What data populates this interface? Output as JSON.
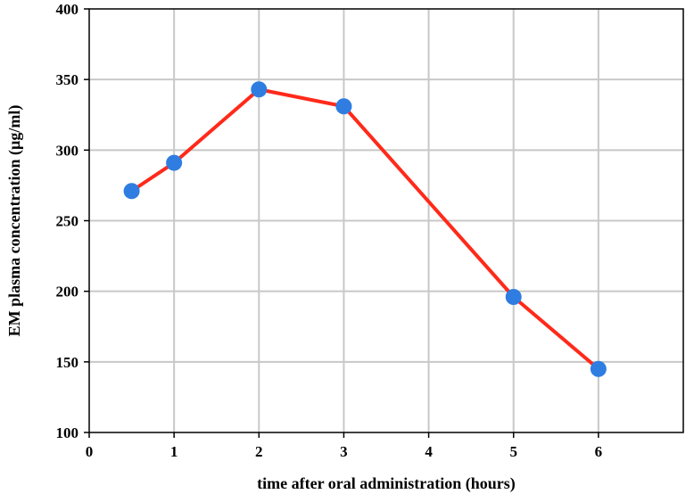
{
  "chart_data": {
    "type": "line",
    "title": "",
    "xlabel": "time after oral administration (hours)",
    "ylabel": "EM plasma concentration (µg/ml)",
    "xlim": [
      0,
      7
    ],
    "ylim": [
      100,
      400
    ],
    "x_ticks": [
      0,
      1,
      2,
      3,
      4,
      5,
      6
    ],
    "y_ticks": [
      100,
      150,
      200,
      250,
      300,
      350,
      400
    ],
    "grid": true,
    "series": [
      {
        "x": [
          0.5,
          1,
          2,
          3,
          5,
          6
        ],
        "y": [
          271,
          291,
          343,
          331,
          196,
          145
        ],
        "line_color": "#ff2a1a",
        "marker_color": "#2f7de1"
      }
    ]
  }
}
